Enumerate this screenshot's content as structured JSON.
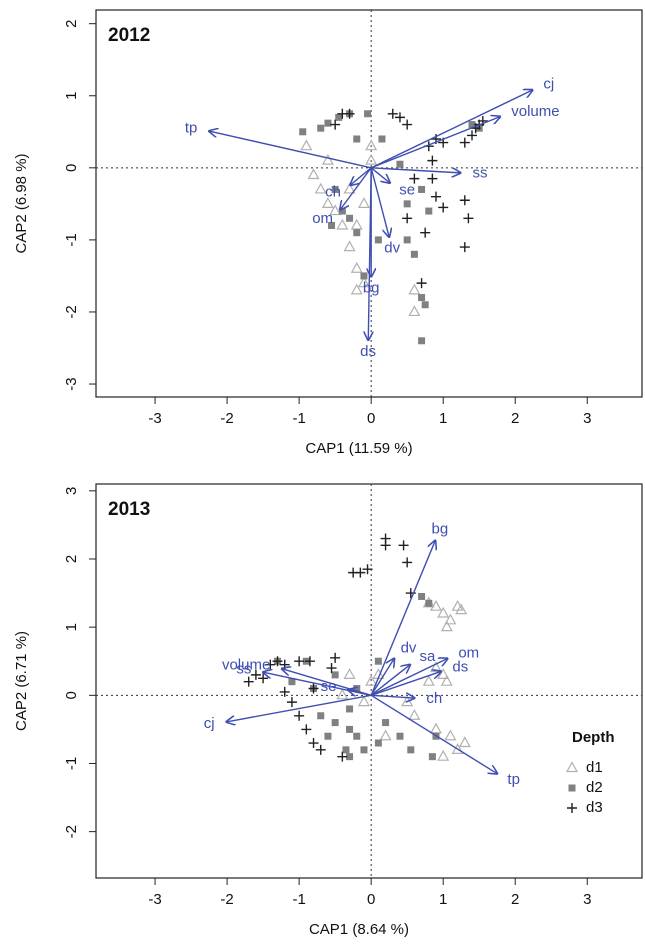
{
  "chart_data": [
    {
      "type": "scatter",
      "title": "2012",
      "xlabel": "CAP1 (11.59 %)",
      "ylabel": "CAP2 (6.98 %)",
      "xlim": [
        -3.82,
        3.76
      ],
      "ylim": [
        -3.18,
        2.19
      ],
      "xticks": [
        -3,
        -2,
        -1,
        0,
        1,
        2,
        3
      ],
      "yticks": [
        -3,
        -2,
        -1,
        0,
        1,
        2
      ],
      "zero_lines": true,
      "arrow_color": "#3f4fb0",
      "legend": false,
      "series": [
        {
          "color": "#b0b0b0",
          "marker": "triangle",
          "x": [
            -0.9,
            -0.8,
            -0.7,
            -0.6,
            -0.5,
            -0.4,
            -0.3,
            -0.2,
            -0.2,
            -0.1,
            0,
            0,
            0.6,
            0.6,
            -0.6,
            -0.2,
            -0.1,
            -0.3
          ],
          "y": [
            0.3,
            -0.1,
            -0.3,
            -0.5,
            -0.6,
            -0.8,
            -1.1,
            -1.4,
            -1.7,
            -1.6,
            0.3,
            0.1,
            -2.0,
            -1.7,
            0.1,
            -0.8,
            -0.5,
            -0.3
          ]
        },
        {
          "color": "#808080",
          "marker": "square",
          "x": [
            -0.95,
            -0.7,
            -0.6,
            -0.45,
            -0.3,
            -0.05,
            -0.2,
            0.15,
            -0.5,
            -0.4,
            -0.55,
            -0.3,
            -0.2,
            0.1,
            -0.1,
            0.7,
            0.5,
            0.6,
            0.7,
            0.75,
            0.7,
            0.8,
            1.4,
            1.5,
            0.4,
            0.5
          ],
          "y": [
            0.5,
            0.55,
            0.62,
            0.7,
            0.75,
            0.75,
            0.4,
            0.4,
            -0.3,
            -0.6,
            -0.8,
            -0.7,
            -0.9,
            -1.0,
            -1.5,
            -0.3,
            -1.0,
            -1.2,
            -1.8,
            -1.9,
            -2.4,
            -0.6,
            0.6,
            0.55,
            0.05,
            -0.5
          ]
        },
        {
          "color": "#202020",
          "marker": "plus",
          "x": [
            -0.5,
            -0.4,
            -0.3,
            0.3,
            0.4,
            0.5,
            0.8,
            0.9,
            1.0,
            1.3,
            1.4,
            1.45,
            1.5,
            1.55,
            0.85,
            0.85,
            0.6,
            0.9,
            1.0,
            1.3,
            1.35,
            1.3,
            0.5,
            0.75,
            0.7
          ],
          "y": [
            0.6,
            0.75,
            0.75,
            0.75,
            0.7,
            0.6,
            0.3,
            0.4,
            0.35,
            0.35,
            0.45,
            0.55,
            0.6,
            0.65,
            0.1,
            -0.15,
            -0.15,
            -0.4,
            -0.55,
            -0.45,
            -0.7,
            -1.1,
            -0.7,
            -0.9,
            -1.6
          ]
        }
      ],
      "arrows": [
        {
          "label": "cj",
          "x": 2.24,
          "y": 1.08
        },
        {
          "label": "volume",
          "x": 1.79,
          "y": 0.71
        },
        {
          "label": "tp",
          "x": -2.25,
          "y": 0.51
        },
        {
          "label": "ss",
          "x": 1.24,
          "y": -0.07
        },
        {
          "label": "se",
          "x": 0.26,
          "y": -0.21
        },
        {
          "label": "ch",
          "x": -0.29,
          "y": -0.24
        },
        {
          "label": "om",
          "x": -0.43,
          "y": -0.58
        },
        {
          "label": "dv",
          "x": 0.25,
          "y": -0.96
        },
        {
          "label": "bg",
          "x": 0,
          "y": -1.51
        },
        {
          "label": "ds",
          "x": -0.04,
          "y": -2.39
        }
      ]
    },
    {
      "type": "scatter",
      "title": "2013",
      "xlabel": "CAP1 (8.64 %)",
      "ylabel": "CAP2 (6.71 %)",
      "xlim": [
        -3.82,
        3.76
      ],
      "ylim": [
        -2.68,
        3.1
      ],
      "xticks": [
        -3,
        -2,
        -1,
        0,
        1,
        2,
        3
      ],
      "yticks": [
        -2,
        -1,
        0,
        1,
        2,
        3
      ],
      "zero_lines": true,
      "arrow_color": "#3f4fb0",
      "legend": true,
      "legend_title": "Depth",
      "legend_position": "lower right",
      "series": [
        {
          "name": "d1",
          "color": "#b0b0b0",
          "marker": "triangle",
          "x": [
            0.9,
            1.0,
            1.05,
            1.1,
            1.2,
            1.25,
            0.8,
            0.9,
            1.0,
            1.05,
            0.8,
            1.1,
            1.2,
            1.0,
            1.3,
            0.9,
            0.5,
            0.6,
            0.1,
            0,
            -0.1,
            0.2,
            -0.4,
            -0.3
          ],
          "y": [
            1.3,
            1.2,
            1.0,
            1.1,
            1.3,
            1.25,
            1.35,
            0.4,
            0.3,
            0.2,
            0.2,
            -0.6,
            -0.8,
            -0.9,
            -0.7,
            -0.5,
            -0.1,
            -0.3,
            0.3,
            0.2,
            -0.1,
            -0.6,
            0,
            0.3
          ]
        },
        {
          "name": "d2",
          "color": "#808080",
          "marker": "square",
          "x": [
            0.7,
            0.8,
            -1.3,
            -1.1,
            -0.9,
            -0.8,
            -0.7,
            -0.5,
            -0.3,
            -0.2,
            -0.6,
            -0.3,
            -0.1,
            0.1,
            0.2,
            0.4,
            0.55,
            0.9,
            0.85,
            -0.5,
            -0.2,
            0.1,
            -0.3,
            -0.35
          ],
          "y": [
            1.45,
            1.35,
            0.5,
            0.2,
            0.5,
            0.1,
            -0.3,
            -0.4,
            -0.5,
            -0.6,
            -0.6,
            -0.9,
            -0.8,
            -0.7,
            -0.4,
            -0.6,
            -0.8,
            -0.6,
            -0.9,
            0.3,
            0.1,
            0.5,
            -0.2,
            -0.8
          ]
        },
        {
          "name": "d3",
          "color": "#202020",
          "marker": "plus",
          "x": [
            -1.7,
            -1.6,
            -1.5,
            -1.4,
            -1.3,
            -1.2,
            -1.0,
            -0.85,
            -0.5,
            -1.1,
            -1.0,
            -0.9,
            -0.8,
            -0.7,
            -0.4,
            -0.25,
            -0.15,
            -0.05,
            0.2,
            0.2,
            0.45,
            0.5,
            0.55,
            -0.8,
            -1.2,
            -0.55
          ],
          "y": [
            0.2,
            0.3,
            0.25,
            0.45,
            0.5,
            0.45,
            0.5,
            0.5,
            0.55,
            -0.1,
            -0.3,
            -0.5,
            -0.7,
            -0.8,
            -0.9,
            1.8,
            1.8,
            1.85,
            2.2,
            2.3,
            2.2,
            1.95,
            1.5,
            0.1,
            0.05,
            0.4
          ]
        }
      ],
      "arrows": [
        {
          "label": "bg",
          "x": 0.89,
          "y": 2.27
        },
        {
          "label": "dv",
          "x": 0.32,
          "y": 0.54
        },
        {
          "label": "sa",
          "x": 0.54,
          "y": 0.45
        },
        {
          "label": "om",
          "x": 1.06,
          "y": 0.54
        },
        {
          "label": "ds",
          "x": 0.97,
          "y": 0.35
        },
        {
          "label": "ch",
          "x": 0.6,
          "y": -0.04
        },
        {
          "label": "tp",
          "x": 1.75,
          "y": -1.15
        },
        {
          "label": "cj",
          "x": -2.01,
          "y": -0.39
        },
        {
          "label": "volume",
          "x": -1.24,
          "y": 0.39
        },
        {
          "label": "ss",
          "x": -1.5,
          "y": 0.34
        },
        {
          "label": "se",
          "x": -0.32,
          "y": 0.08
        }
      ]
    }
  ]
}
